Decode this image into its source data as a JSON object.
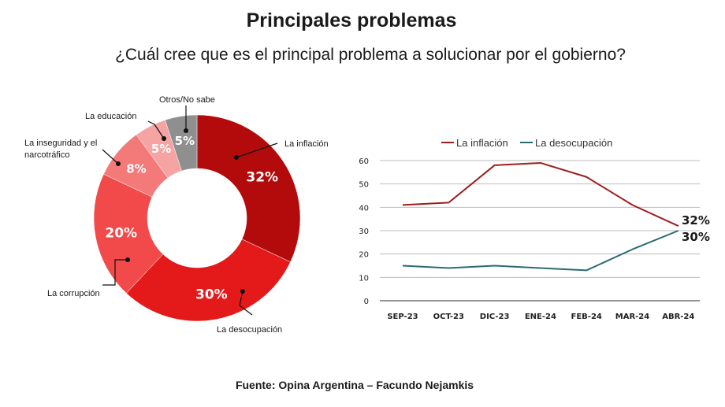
{
  "title": "Principales problemas",
  "subtitle": "¿Cuál cree que es el principal problema a solucionar por el gobierno?",
  "source": "Fuente: Opina Argentina – Facundo Nejamkis",
  "chart_data": [
    {
      "type": "pie",
      "donut": true,
      "slices": [
        {
          "label": "La inflación",
          "value": 32,
          "display": "32%",
          "color": "#b30b0b"
        },
        {
          "label": "La desocupación",
          "value": 30,
          "display": "30%",
          "color": "#e41a1a"
        },
        {
          "label": "La corrupción",
          "value": 20,
          "display": "20%",
          "color": "#f24a4a"
        },
        {
          "label": "La inseguridad y el narcotráfico",
          "label_lines": [
            "La inseguridad y el",
            "narcotráfico"
          ],
          "value": 8,
          "display": "8%",
          "color": "#f47a7a"
        },
        {
          "label": "La educación",
          "value": 5,
          "display": "5%",
          "color": "#f6a3a3"
        },
        {
          "label": "Otros/No sabe",
          "value": 5,
          "display": "5%",
          "color": "#8f8f8f"
        }
      ]
    },
    {
      "type": "line",
      "categories": [
        "SEP-23",
        "OCT-23",
        "DIC-23",
        "ENE-24",
        "FEB-24",
        "MAR-24",
        "ABR-24"
      ],
      "series": [
        {
          "name": "La inflación",
          "values": [
            41,
            42,
            58,
            59,
            53,
            41,
            32
          ],
          "color": "#a01d1d",
          "end_label": "32%"
        },
        {
          "name": "La desocupación",
          "values": [
            15,
            14,
            15,
            14,
            13,
            22,
            30
          ],
          "color": "#2b6b73",
          "end_label": "30%"
        }
      ],
      "ylim": [
        0,
        60
      ],
      "yticks": [
        0,
        10,
        20,
        30,
        40,
        50,
        60
      ],
      "grid": true,
      "legend": "top"
    }
  ]
}
